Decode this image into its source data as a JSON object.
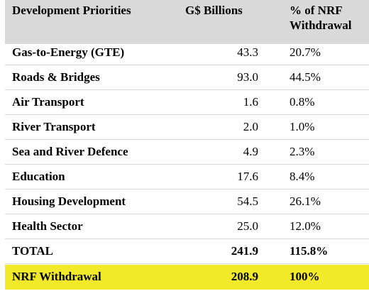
{
  "table": {
    "headers": {
      "label": "Development Priorities",
      "value": "G$ Billions",
      "pct": "% of NRF Withdrawal"
    },
    "rows": [
      {
        "label": "Gas-to-Energy (GTE)",
        "value": "43.3",
        "pct": "20.7%"
      },
      {
        "label": "Roads & Bridges",
        "value": "93.0",
        "pct": "44.5%"
      },
      {
        "label": "Air Transport",
        "value": "1.6",
        "pct": "0.8%"
      },
      {
        "label": "River Transport",
        "value": "2.0",
        "pct": "1.0%"
      },
      {
        "label": "Sea and River Defence",
        "value": "4.9",
        "pct": "2.3%"
      },
      {
        "label": "Education",
        "value": "17.6",
        "pct": "8.4%"
      },
      {
        "label": "Housing Development",
        "value": "54.5",
        "pct": "26.1%"
      },
      {
        "label": "Health Sector",
        "value": "25.0",
        "pct": "12.0%"
      }
    ],
    "total": {
      "label": "TOTAL",
      "value": "241.9",
      "pct": "115.8%"
    },
    "withdrawal": {
      "label": "NRF Withdrawal",
      "value": "208.9",
      "pct": "100%"
    }
  },
  "colors": {
    "header_bg": "#d9d9d9",
    "highlight_bg": "#f2e92b"
  }
}
